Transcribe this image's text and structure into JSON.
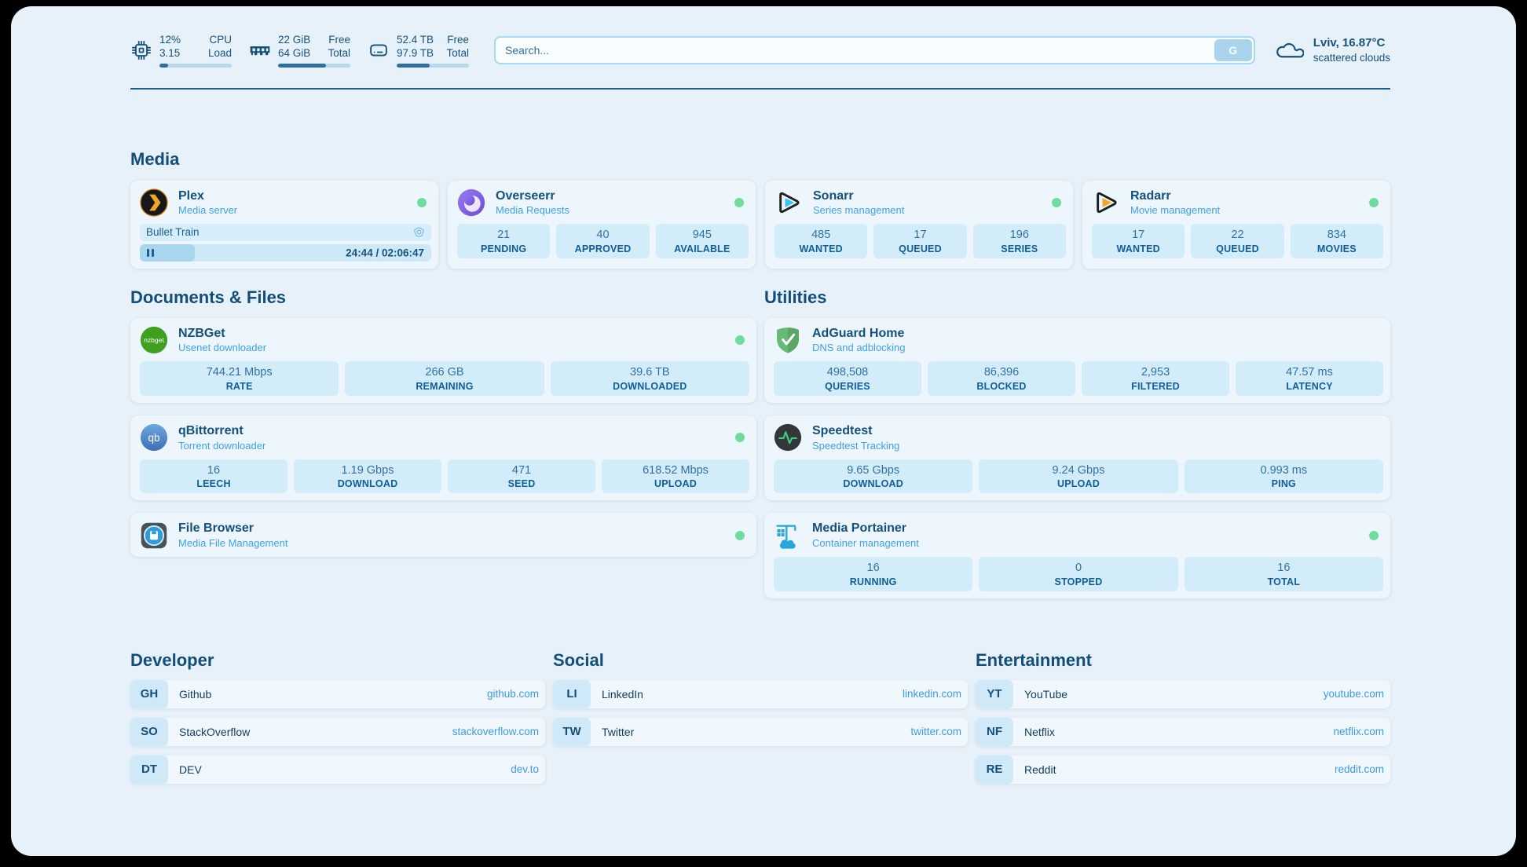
{
  "colors": {
    "accent_green": "#6fdc9e",
    "primary_navy": "#17527d",
    "link_blue": "#3d9ae2",
    "stat_box_bg": "#d3ecfa",
    "page_bg": "#e7f1f9"
  },
  "header": {
    "system_stats": [
      {
        "icon": "cpu-icon",
        "values": [
          "12%",
          "3.15"
        ],
        "labels": [
          "CPU",
          "Load"
        ],
        "progress_pct": 12
      },
      {
        "icon": "memory-icon",
        "values": [
          "22 GiB",
          "64 GiB"
        ],
        "labels": [
          "Free",
          "Total"
        ],
        "progress_pct": 66
      },
      {
        "icon": "storage-icon",
        "values": [
          "52.4 TB",
          "97.9 TB"
        ],
        "labels": [
          "Free",
          "Total"
        ],
        "progress_pct": 46
      }
    ],
    "search": {
      "placeholder": "Search...",
      "engine_button": "G"
    },
    "weather": {
      "icon": "cloud-icon",
      "location": "Lviv, 16.87°C",
      "condition": "scattered clouds"
    }
  },
  "media": {
    "title": "Media",
    "plex": {
      "icon": "plex-icon",
      "name": "Plex",
      "subtitle": "Media server",
      "online": true,
      "now_playing": {
        "title": "Bullet Train",
        "time": "24:44 / 02:06:47",
        "progress_pct": 19
      }
    },
    "apps": [
      {
        "icon": "overseerr-icon",
        "name": "Overseerr",
        "subtitle": "Media Requests",
        "online": true,
        "stats": [
          {
            "value": "21",
            "label": "PENDING"
          },
          {
            "value": "40",
            "label": "APPROVED"
          },
          {
            "value": "945",
            "label": "AVAILABLE"
          }
        ]
      },
      {
        "icon": "sonarr-icon",
        "name": "Sonarr",
        "subtitle": "Series management",
        "online": true,
        "stats": [
          {
            "value": "485",
            "label": "WANTED"
          },
          {
            "value": "17",
            "label": "QUEUED"
          },
          {
            "value": "196",
            "label": "SERIES"
          }
        ]
      },
      {
        "icon": "radarr-icon",
        "name": "Radarr",
        "subtitle": "Movie management",
        "online": true,
        "stats": [
          {
            "value": "17",
            "label": "WANTED"
          },
          {
            "value": "22",
            "label": "QUEUED"
          },
          {
            "value": "834",
            "label": "MOVIES"
          }
        ]
      }
    ]
  },
  "documents": {
    "title": "Documents & Files",
    "apps": [
      {
        "icon": "nzbget-icon",
        "name": "NZBGet",
        "subtitle": "Usenet downloader",
        "online": true,
        "stats": [
          {
            "value": "744.21 Mbps",
            "label": "RATE"
          },
          {
            "value": "266 GB",
            "label": "REMAINING"
          },
          {
            "value": "39.6 TB",
            "label": "DOWNLOADED"
          }
        ]
      },
      {
        "icon": "qbittorrent-icon",
        "name": "qBittorrent",
        "subtitle": "Torrent downloader",
        "online": true,
        "stats": [
          {
            "value": "16",
            "label": "LEECH"
          },
          {
            "value": "1.19 Gbps",
            "label": "DOWNLOAD"
          },
          {
            "value": "471",
            "label": "SEED"
          },
          {
            "value": "618.52 Mbps",
            "label": "UPLOAD"
          }
        ]
      },
      {
        "icon": "filebrowser-icon",
        "name": "File Browser",
        "subtitle": "Media File Management",
        "online": true,
        "stats": []
      }
    ]
  },
  "utilities": {
    "title": "Utilities",
    "apps": [
      {
        "icon": "adguard-icon",
        "name": "AdGuard Home",
        "subtitle": "DNS and adblocking",
        "online": false,
        "stats": [
          {
            "value": "498,508",
            "label": "QUERIES"
          },
          {
            "value": "86,396",
            "label": "BLOCKED"
          },
          {
            "value": "2,953",
            "label": "FILTERED"
          },
          {
            "value": "47.57 ms",
            "label": "LATENCY"
          }
        ]
      },
      {
        "icon": "speedtest-icon",
        "name": "Speedtest",
        "subtitle": "Speedtest Tracking",
        "online": false,
        "stats": [
          {
            "value": "9.65 Gbps",
            "label": "DOWNLOAD"
          },
          {
            "value": "9.24 Gbps",
            "label": "UPLOAD"
          },
          {
            "value": "0.993 ms",
            "label": "PING"
          }
        ]
      },
      {
        "icon": "portainer-icon",
        "name": "Media Portainer",
        "subtitle": "Container management",
        "online": true,
        "stats": [
          {
            "value": "16",
            "label": "RUNNING"
          },
          {
            "value": "0",
            "label": "STOPPED"
          },
          {
            "value": "16",
            "label": "TOTAL"
          }
        ]
      }
    ]
  },
  "bookmarks": [
    {
      "title": "Developer",
      "links": [
        {
          "abbr": "GH",
          "name": "Github",
          "url": "github.com"
        },
        {
          "abbr": "SO",
          "name": "StackOverflow",
          "url": "stackoverflow.com"
        },
        {
          "abbr": "DT",
          "name": "DEV",
          "url": "dev.to"
        }
      ]
    },
    {
      "title": "Social",
      "links": [
        {
          "abbr": "LI",
          "name": "LinkedIn",
          "url": "linkedin.com"
        },
        {
          "abbr": "TW",
          "name": "Twitter",
          "url": "twitter.com"
        }
      ]
    },
    {
      "title": "Entertainment",
      "links": [
        {
          "abbr": "YT",
          "name": "YouTube",
          "url": "youtube.com"
        },
        {
          "abbr": "NF",
          "name": "Netflix",
          "url": "netflix.com"
        },
        {
          "abbr": "RE",
          "name": "Reddit",
          "url": "reddit.com"
        }
      ]
    }
  ]
}
